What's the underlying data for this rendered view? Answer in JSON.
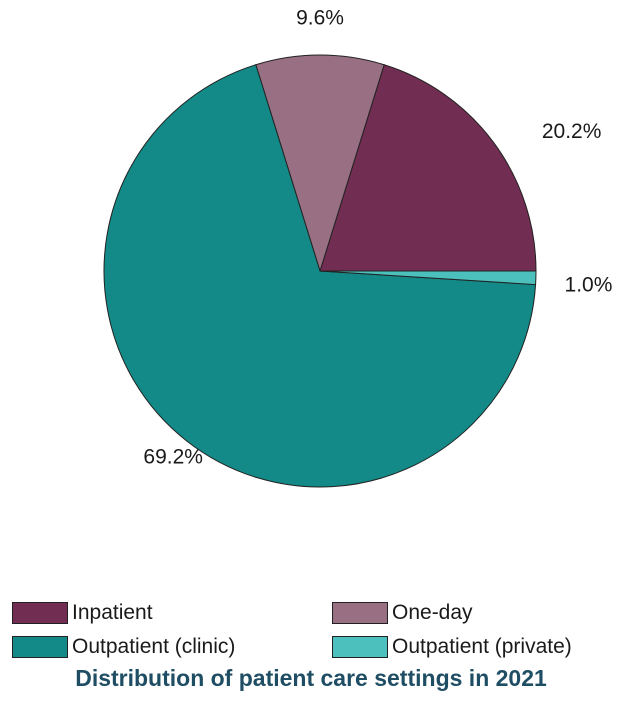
{
  "chart_data": {
    "type": "pie",
    "title": "Distribution of patient care settings in 2021",
    "slices": [
      {
        "name": "Inpatient",
        "value": 20.2,
        "label": "20.2%",
        "color": "#722d52"
      },
      {
        "name": "Outpatient (private)",
        "value": 1.0,
        "label": "1.0%",
        "color": "#4cc0bc"
      },
      {
        "name": "Outpatient (clinic)",
        "value": 69.2,
        "label": "69.2%",
        "color": "#138a87"
      },
      {
        "name": "One-day",
        "value": 9.6,
        "label": "9.6%",
        "color": "#997083"
      }
    ],
    "legend": {
      "placement": "bottom",
      "entries": [
        "Inpatient",
        "One-day",
        "Outpatient (clinic)",
        "Outpatient (private)"
      ]
    }
  }
}
